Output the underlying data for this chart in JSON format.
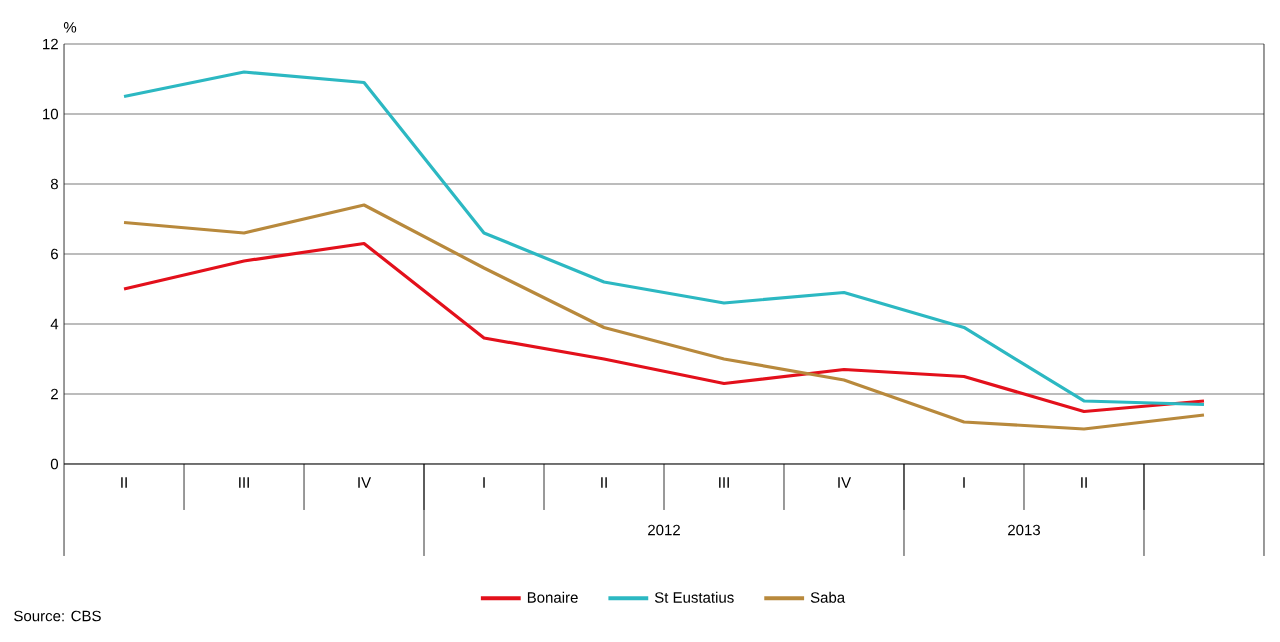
{
  "chart_data": {
    "type": "line",
    "ylabel": "%",
    "categories": [
      "II",
      "III",
      "IV",
      "I",
      "II",
      "III",
      "IV",
      "I",
      "II",
      null
    ],
    "series": [
      {
        "name": "Bonaire",
        "color": "#e3101b",
        "values": [
          5.0,
          5.8,
          6.3,
          3.6,
          3.0,
          2.3,
          2.7,
          2.5,
          1.5,
          1.8
        ]
      },
      {
        "name": "St Eustatius",
        "color": "#2cb8c2",
        "values": [
          10.5,
          11.2,
          10.9,
          6.6,
          5.2,
          4.6,
          4.9,
          3.9,
          1.8,
          1.7
        ]
      },
      {
        "name": "Saba",
        "color": "#b8893c",
        "values": [
          6.9,
          6.6,
          7.4,
          5.6,
          3.9,
          3.0,
          2.4,
          1.2,
          1.0,
          1.4
        ]
      }
    ],
    "ylim": [
      0,
      12
    ],
    "yticks": [
      0,
      2,
      4,
      6,
      8,
      10,
      12
    ],
    "grid": "y",
    "legend": "bottom",
    "annotations": [
      "Source: CBS",
      "2012",
      "2013"
    ]
  }
}
